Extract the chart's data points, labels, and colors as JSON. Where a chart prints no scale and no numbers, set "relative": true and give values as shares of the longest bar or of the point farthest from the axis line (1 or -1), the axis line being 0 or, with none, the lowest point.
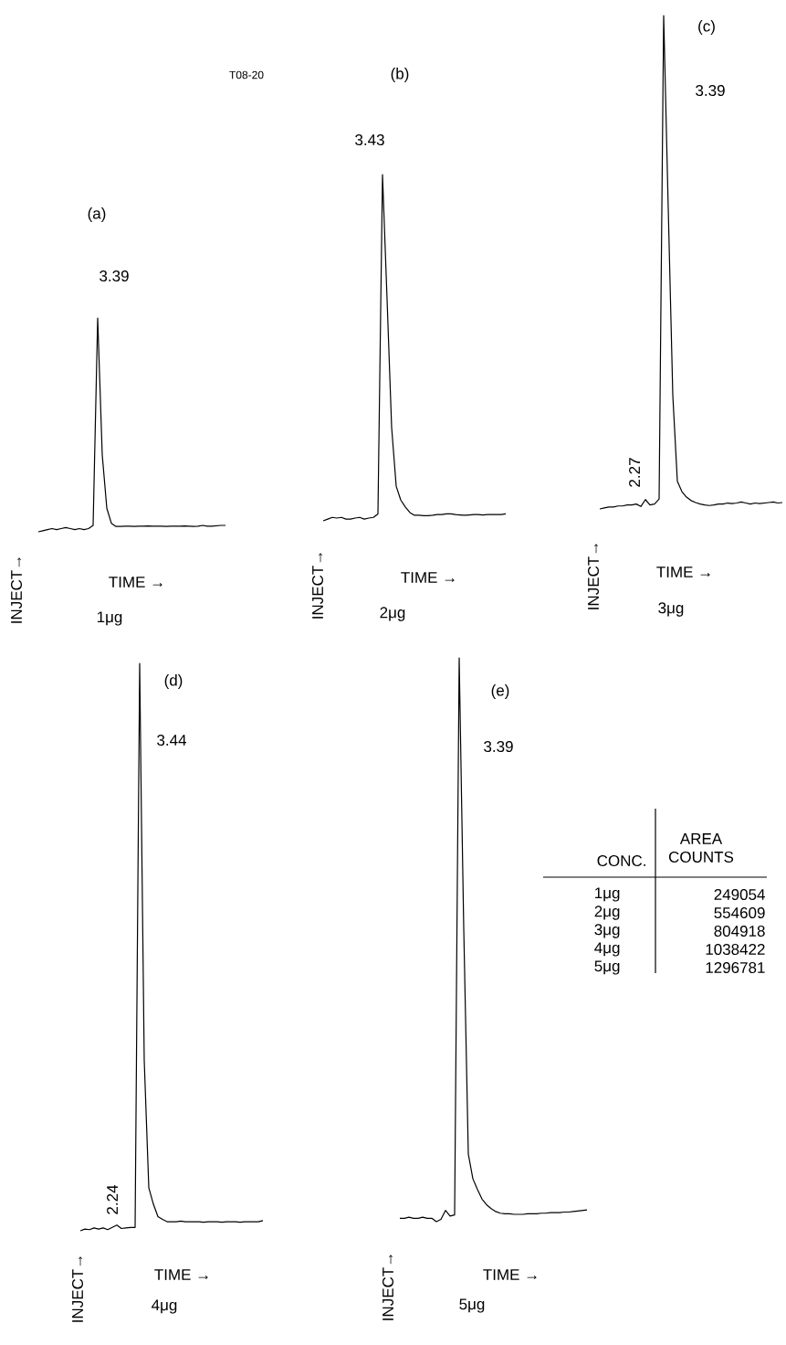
{
  "chart_data": [
    {
      "type": "line",
      "relative": true,
      "title": "(a)",
      "xlabel": "TIME →",
      "ylabel": "INJECT→",
      "color": "#000000",
      "categories": [
        null,
        null,
        null,
        null,
        null,
        null,
        null,
        null,
        null,
        null,
        null,
        null,
        null,
        null,
        null,
        null,
        null,
        null,
        null,
        null,
        null,
        null,
        null,
        null,
        null,
        null,
        null,
        null,
        null,
        null,
        null,
        null,
        null,
        null,
        null,
        null,
        null,
        null,
        null,
        null,
        null,
        null
      ],
      "values": [
        0,
        0.005,
        0.01,
        0.015,
        0.01,
        0.015,
        0.02,
        0.015,
        0.01,
        0.015,
        0.01,
        0.015,
        0.03,
        1,
        0.36,
        0.11,
        0.04,
        0.025,
        0.025,
        0.026,
        0.026,
        0.025,
        0.026,
        0.026,
        0.027,
        0.026,
        0.026,
        0.026,
        0.025,
        0.026,
        0.026,
        0.026,
        0.027,
        0.026,
        0.025,
        0.026,
        0.03,
        0.026,
        0.026,
        0.028,
        0.03,
        0.03
      ],
      "annotations": [
        "3.39",
        "1μg",
        "1μg",
        "249054"
      ]
    },
    {
      "type": "line",
      "relative": true,
      "title": "(b)",
      "xlabel": "TIME →",
      "ylabel": "INJECT→",
      "color": "#000000",
      "categories": [
        null,
        null,
        null,
        null,
        null,
        null,
        null,
        null,
        null,
        null,
        null,
        null,
        null,
        null,
        null,
        null,
        null,
        null,
        null,
        null,
        null,
        null,
        null,
        null,
        null,
        null,
        null,
        null,
        null,
        null,
        null,
        null,
        null,
        null,
        null,
        null,
        null,
        null,
        null,
        null,
        null
      ],
      "values": [
        0,
        0.005,
        0.01,
        0.008,
        0.01,
        0.005,
        0.005,
        0.008,
        0.01,
        0.005,
        0.008,
        0.01,
        0.02,
        1,
        0.64,
        0.27,
        0.1,
        0.06,
        0.04,
        0.024,
        0.016,
        0.016,
        0.015,
        0.015,
        0.016,
        0.018,
        0.018,
        0.02,
        0.02,
        0.018,
        0.017,
        0.016,
        0.017,
        0.018,
        0.018,
        0.017,
        0.018,
        0.018,
        0.018,
        0.018,
        0.02
      ],
      "annotations": [
        "3.43",
        "2μg",
        "T08-20",
        "2μg",
        "554609"
      ]
    },
    {
      "type": "line",
      "relative": true,
      "title": "(c)",
      "xlabel": "TIME →",
      "ylabel": "INJECT→",
      "color": "#000000",
      "categories": [
        null,
        null,
        null,
        null,
        null,
        null,
        null,
        null,
        null,
        null,
        null,
        null,
        null,
        null,
        null,
        null,
        null,
        null,
        null,
        null,
        null,
        null,
        null,
        null,
        null,
        null,
        null,
        null,
        null,
        null,
        null,
        null,
        null,
        null,
        null,
        null,
        null,
        null,
        null,
        null,
        null
      ],
      "values": [
        0,
        0.002,
        0.004,
        0.004,
        0.006,
        0.006,
        0.008,
        0.008,
        0.01,
        0.005,
        0.019,
        0.008,
        0.01,
        0.02,
        1,
        0.61,
        0.23,
        0.056,
        0.035,
        0.024,
        0.017,
        0.013,
        0.01,
        0.008,
        0.007,
        0.008,
        0.01,
        0.01,
        0.012,
        0.011,
        0.012,
        0.014,
        0.012,
        0.01,
        0.012,
        0.011,
        0.012,
        0.013,
        0.014,
        0.012,
        0.013
      ],
      "annotations": [
        "2.27",
        "3.39",
        "3μg",
        "3μg",
        "804918"
      ]
    },
    {
      "type": "line",
      "relative": true,
      "title": "(d)",
      "xlabel": "TIME →",
      "ylabel": "INJECT→",
      "color": "#000000",
      "categories": [
        null,
        null,
        null,
        null,
        null,
        null,
        null,
        null,
        null,
        null,
        null,
        null,
        null,
        null,
        null,
        null,
        null,
        null,
        null,
        null,
        null,
        null,
        null,
        null,
        null,
        null,
        null,
        null,
        null,
        null,
        null,
        null,
        null,
        null,
        null,
        null,
        null,
        null,
        null,
        null,
        null
      ],
      "values": [
        0,
        0.003,
        0.002,
        0.005,
        0.003,
        0.005,
        0.002,
        0.006,
        0.01,
        0.004,
        0.005,
        0.006,
        0.006,
        1,
        0.3,
        0.076,
        0.047,
        0.025,
        0.02,
        0.016,
        0.016,
        0.016,
        0.017,
        0.016,
        0.016,
        0.016,
        0.016,
        0.015,
        0.016,
        0.016,
        0.016,
        0.015,
        0.016,
        0.016,
        0.016,
        0.015,
        0.016,
        0.016,
        0.016,
        0.016,
        0.018
      ],
      "annotations": [
        "2.24",
        "3.44",
        "4μg",
        "4μg",
        "1038422"
      ]
    },
    {
      "type": "line",
      "relative": true,
      "title": "(e)",
      "xlabel": "TIME →",
      "ylabel": "INJECT→",
      "color": "#000000",
      "categories": [
        null,
        null,
        null,
        null,
        null,
        null,
        null,
        null,
        null,
        null,
        null,
        null,
        null,
        null,
        null,
        null,
        null,
        null,
        null,
        null,
        null,
        null,
        null,
        null,
        null,
        null,
        null,
        null,
        null,
        null,
        null,
        null,
        null,
        null,
        null,
        null,
        null,
        null,
        null,
        null,
        null,
        null
      ],
      "values": [
        0.006,
        0.006,
        0.008,
        0.006,
        0.006,
        0.008,
        0.006,
        0.006,
        0,
        0.004,
        0.02,
        0.01,
        0.012,
        1,
        0.52,
        0.12,
        0.076,
        0.057,
        0.04,
        0.03,
        0.023,
        0.018,
        0.015,
        0.014,
        0.014,
        0.013,
        0.013,
        0.013,
        0.014,
        0.014,
        0.014,
        0.015,
        0.015,
        0.016,
        0.016,
        0.016,
        0.017,
        0.017,
        0.018,
        0.019,
        0.02,
        0.021
      ],
      "annotations": [
        "3.39",
        "5μg",
        "5μg",
        "1296781"
      ]
    },
    {
      "type": "other",
      "annotations": [
        "CONC.",
        "AREA COUNTS"
      ]
    }
  ]
}
